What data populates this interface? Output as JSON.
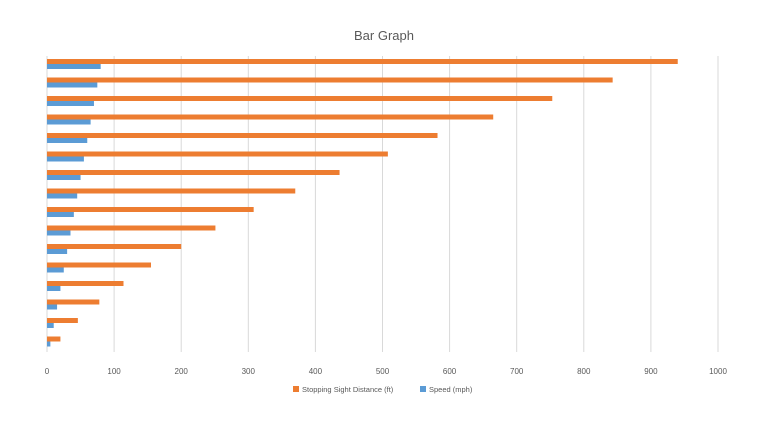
{
  "chart_data": {
    "type": "bar",
    "orientation": "horizontal",
    "title": "Bar Graph",
    "xlabel": "",
    "ylabel": "",
    "xlim": [
      0,
      1000
    ],
    "x_ticks": [
      0,
      100,
      200,
      300,
      400,
      500,
      600,
      700,
      800,
      900,
      1000
    ],
    "grid": "vertical",
    "legend_position": "bottom",
    "series": [
      {
        "name": "Stopping Sight Distance (ft)",
        "color": "#ED7D31",
        "values": [
          940,
          843,
          753,
          665,
          582,
          508,
          436,
          370,
          308,
          251,
          200,
          155,
          114,
          78,
          46,
          20
        ]
      },
      {
        "name": "Speed (mph)",
        "color": "#5B9BD5",
        "values": [
          80,
          75,
          70,
          65,
          60,
          55,
          50,
          45,
          40,
          35,
          30,
          25,
          20,
          15,
          10,
          5
        ]
      }
    ]
  }
}
